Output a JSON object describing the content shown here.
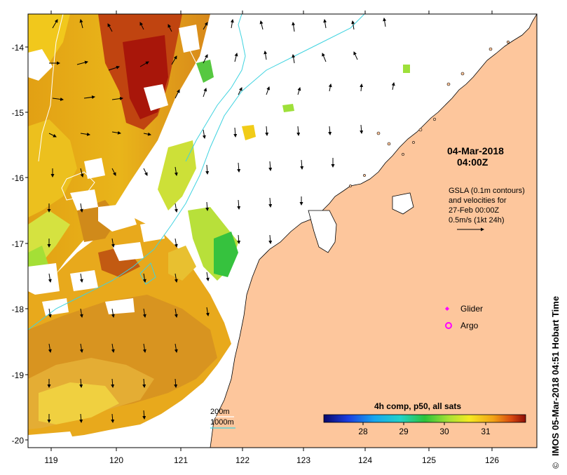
{
  "map": {
    "date_line1": "04-Mar-2018",
    "date_line2": "04:00Z",
    "info_lines": [
      "GSLA (0.1m contours)",
      "and velocities for",
      "27-Feb 00:00Z",
      "0.5m/s (1kt 24h)"
    ],
    "legend": {
      "glider": "Glider",
      "argo": "Argo",
      "glider_color": "#ff00ff",
      "argo_color": "#ff00ff"
    },
    "depth_legend": {
      "line1": "200m",
      "line2": "1000m",
      "color_200m": "#ffffff",
      "color_1000m": "#3fd3e0"
    },
    "colorbar": {
      "title": "4h comp, p50, all sats",
      "ticks": [
        "28",
        "29",
        "30",
        "31"
      ]
    },
    "lat_ticks": [
      "-14",
      "-15",
      "-16",
      "-17",
      "-18",
      "-19",
      "-20"
    ],
    "lon_ticks": [
      "119",
      "120",
      "121",
      "122",
      "123",
      "124",
      "125",
      "126"
    ],
    "credit": "IMOS 05-Mar-2018 04:51 Hobart Time",
    "copyright": "©",
    "colors": {
      "land": "#fdc69c",
      "sst_hot": "#b11a0c",
      "sst_warm": "#e39a10",
      "sst_mid": "#f1cc18",
      "sst_cool": "#9ee03a",
      "sst_cold": "#36c23e"
    }
  }
}
